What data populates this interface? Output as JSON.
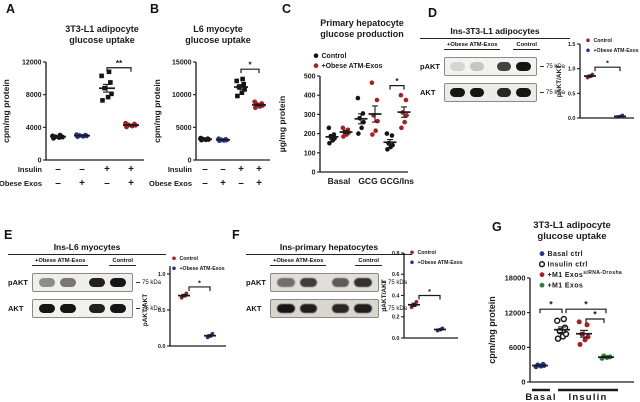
{
  "figure": {
    "panel_labels": {
      "A": "A",
      "B": "B",
      "C": "C",
      "D": "D",
      "E": "E",
      "F": "F",
      "G": "G"
    }
  },
  "colors": {
    "black": "#141414",
    "red": "#a81e22",
    "blue": "#27348b",
    "green": "#2b7d3c",
    "axis": "#1a1a1a"
  },
  "chart_data": [
    {
      "id": "A",
      "type": "scatter",
      "title": "3T3-L1 adipocyte\nglucose uptake",
      "ylabel": "cpm/mg protein",
      "ylim": [
        0,
        12000
      ],
      "yticks": [
        "0",
        "4000",
        "8000",
        "12000"
      ],
      "groups": [
        {
          "name": "Insulin- / ObeseExos-",
          "color": "black",
          "marker": "circle",
          "values": [
            2650,
            2750,
            2800,
            2850,
            2900,
            2950,
            3050
          ],
          "mean": 2860,
          "sem": 50
        },
        {
          "name": "Insulin- / ObeseExos+",
          "color": "blue",
          "marker": "circle",
          "values": [
            2850,
            2900,
            2950,
            3000,
            3050,
            3100
          ],
          "mean": 2980,
          "sem": 45
        },
        {
          "name": "Insulin+ / ObeseExos-",
          "color": "black",
          "marker": "square",
          "values": [
            7300,
            7700,
            8100,
            8800,
            9500,
            10300,
            10800
          ],
          "mean": 8790,
          "sem": 470
        },
        {
          "name": "Insulin+ / ObeseExos+",
          "color": "red",
          "marker": "circle",
          "values": [
            4050,
            4150,
            4250,
            4300,
            4400,
            4500
          ],
          "mean": 4270,
          "sem": 70
        }
      ],
      "xrows": [
        {
          "label": "Insulin",
          "cells": [
            "–",
            "–",
            "+",
            "+"
          ]
        },
        {
          "label": "Obese Exos",
          "cells": [
            "–",
            "+",
            "–",
            "+"
          ]
        }
      ],
      "sig": [
        {
          "from": 2,
          "to": 3,
          "label": "**",
          "y": 11300
        }
      ]
    },
    {
      "id": "B",
      "type": "scatter",
      "title": "L6 myocyte\nglucose uptake",
      "ylabel": "cpm/mg protein",
      "ylim": [
        0,
        15000
      ],
      "yticks": [
        "0",
        "5000",
        "10000",
        "15000"
      ],
      "groups": [
        {
          "name": "Insulin- / ObeseExos-",
          "color": "black",
          "marker": "circle",
          "values": [
            3050,
            3100,
            3150,
            3200,
            3250,
            3350
          ],
          "mean": 3180,
          "sem": 45
        },
        {
          "name": "Insulin- / ObeseExos+",
          "color": "blue",
          "marker": "circle",
          "values": [
            2950,
            3000,
            3050,
            3100,
            3150,
            3250
          ],
          "mean": 3080,
          "sem": 45
        },
        {
          "name": "Insulin+ / ObeseExos-",
          "color": "black",
          "marker": "square",
          "values": [
            9800,
            10300,
            10800,
            11200,
            11600,
            12100,
            12400
          ],
          "mean": 11170,
          "sem": 360
        },
        {
          "name": "Insulin+ / ObeseExos+",
          "color": "red",
          "marker": "circle",
          "values": [
            8000,
            8200,
            8350,
            8500,
            8650,
            8900
          ],
          "mean": 8430,
          "sem": 130
        }
      ],
      "xrows": [
        {
          "label": "Insulin",
          "cells": [
            "–",
            "–",
            "+",
            "+"
          ]
        },
        {
          "label": "Obese Exos",
          "cells": [
            "–",
            "+",
            "–",
            "+"
          ]
        }
      ],
      "sig": [
        {
          "from": 2,
          "to": 3,
          "label": "*",
          "y": 13900
        }
      ]
    },
    {
      "id": "C",
      "type": "scatter",
      "title": "Primary hepatocyte\nglucose production",
      "ylabel": "µg/mg protein",
      "ylim": [
        0,
        500
      ],
      "yticks": [
        "0",
        "100",
        "200",
        "300",
        "400",
        "500"
      ],
      "legend": [
        {
          "color": "black",
          "label": "Control"
        },
        {
          "color": "red",
          "label": "+Obese ATM-Exos"
        }
      ],
      "groups": [
        {
          "name": "Basal Control",
          "color": "black",
          "marker": "circle",
          "values": [
            150,
            165,
            175,
            185,
            195,
            230
          ],
          "mean": 183,
          "sem": 12
        },
        {
          "name": "Basal +Obese ATM-Exos",
          "color": "red",
          "marker": "circle",
          "values": [
            185,
            195,
            205,
            210,
            220,
            230
          ],
          "mean": 208,
          "sem": 7
        },
        {
          "name": "GCG Control",
          "color": "black",
          "marker": "circle",
          "values": [
            200,
            230,
            260,
            280,
            305,
            385
          ],
          "mean": 277,
          "sem": 26
        },
        {
          "name": "GCG +Obese ATM-Exos",
          "color": "red",
          "marker": "circle",
          "values": [
            195,
            215,
            265,
            295,
            375,
            465
          ],
          "mean": 302,
          "sem": 42
        },
        {
          "name": "GCG/Ins Control",
          "color": "black",
          "marker": "circle",
          "values": [
            118,
            130,
            140,
            150,
            190,
            200
          ],
          "mean": 155,
          "sem": 14
        },
        {
          "name": "GCG/Ins +Obese ATM-Exos",
          "color": "red",
          "marker": "circle",
          "values": [
            230,
            260,
            295,
            310,
            375,
            400
          ],
          "mean": 312,
          "sem": 27
        }
      ],
      "xcats": [
        "Basal",
        "GCG",
        "GCG/Ins"
      ],
      "sig": [
        {
          "from": 4,
          "to": 5,
          "label": "*",
          "y": 450
        }
      ]
    },
    {
      "id": "D",
      "type": "blot+scatter",
      "blot": {
        "title": "Ins-3T3-L1 adipocytes",
        "lanes": [
          "+Obese ATM-Exos",
          "Control"
        ],
        "rows": [
          {
            "label": "pAKT",
            "kda": "75 kDa",
            "bands": [
              0.13,
              0.2,
              0.8,
              1.0
            ]
          },
          {
            "label": "AKT",
            "kda": "75 kDa",
            "bands": [
              1.0,
              1.0,
              0.92,
              1.0
            ]
          }
        ]
      },
      "scatter": {
        "ylabel": "pAKT/AKT",
        "ylim": [
          0,
          1.5
        ],
        "yticks": [
          "0.0",
          "0.5",
          "1.0",
          "1.5"
        ],
        "legend": [
          {
            "color": "red",
            "label": "Control"
          },
          {
            "color": "blue",
            "label": "+Obese ATM-Exos"
          }
        ],
        "groups": [
          {
            "name": "Control",
            "color": "red",
            "marker": "circle",
            "values": [
              0.82,
              0.85,
              0.88
            ],
            "mean": 0.85,
            "sem": 0.02
          },
          {
            "name": "+Obese ATM-Exos",
            "color": "blue",
            "marker": "circle",
            "values": [
              0.02,
              0.03,
              0.05
            ],
            "mean": 0.033,
            "sem": 0.01
          }
        ],
        "sig": [
          {
            "from": 0,
            "to": 1,
            "dx1": 5,
            "label": "*",
            "y": 1.03
          }
        ]
      }
    },
    {
      "id": "E",
      "type": "blot+scatter",
      "blot": {
        "title": "Ins-L6 myocytes",
        "lanes": [
          "+Obese ATM-Exos",
          "Control"
        ],
        "rows": [
          {
            "label": "pAKT",
            "kda": "75 kDa",
            "bands": [
              0.45,
              0.55,
              0.95,
              1.0
            ]
          },
          {
            "label": "AKT",
            "kda": "75 kDa",
            "bands": [
              1.0,
              1.0,
              0.95,
              1.0
            ]
          }
        ]
      },
      "scatter": {
        "ylabel": "pAKT/AKT",
        "ylim": [
          0,
          1.0
        ],
        "yticks": [
          "0.0",
          "0.5",
          "1.0"
        ],
        "legend": [
          {
            "color": "red",
            "label": "Control"
          },
          {
            "color": "blue",
            "label": "+Obese ATM-Exos"
          }
        ],
        "groups": [
          {
            "name": "Control",
            "color": "red",
            "marker": "circle",
            "values": [
              0.67,
              0.7,
              0.73
            ],
            "mean": 0.7,
            "sem": 0.017
          },
          {
            "name": "+Obese ATM-Exos",
            "color": "blue",
            "marker": "circle",
            "values": [
              0.12,
              0.14,
              0.17
            ],
            "mean": 0.143,
            "sem": 0.014
          }
        ],
        "sig": [
          {
            "from": 0,
            "to": 1,
            "dx1": 5,
            "label": "*",
            "y": 0.82
          }
        ]
      }
    },
    {
      "id": "F",
      "type": "blot+scatter",
      "blot": {
        "title": "Ins-primary hepatocytes",
        "lanes": [
          "+Obese ATM-Exos",
          "Control"
        ],
        "rows": [
          {
            "label": "pAKT",
            "kda": "75 kDa",
            "bands": [
              0.55,
              0.8,
              0.65,
              0.85
            ]
          },
          {
            "label": "AKT",
            "kda": "75 kDa",
            "bands": [
              1.0,
              0.95,
              0.9,
              0.95
            ]
          }
        ]
      },
      "scatter": {
        "ylabel": "pAKT/AKT",
        "ylim": [
          0,
          0.8
        ],
        "yticks": [
          "0.0",
          "0.2",
          "0.4",
          "0.6",
          "0.8"
        ],
        "legend": [
          {
            "color": "red",
            "label": "Control"
          },
          {
            "color": "blue",
            "label": "+Obese ATM-Exos"
          }
        ],
        "groups": [
          {
            "name": "Control",
            "color": "red",
            "marker": "circle",
            "values": [
              0.29,
              0.31,
              0.34
            ],
            "mean": 0.313,
            "sem": 0.015
          },
          {
            "name": "+Obese ATM-Exos",
            "color": "blue",
            "marker": "circle",
            "values": [
              0.07,
              0.08,
              0.09
            ],
            "mean": 0.08,
            "sem": 0.006
          }
        ],
        "sig": [
          {
            "from": 0,
            "to": 1,
            "dx1": 5,
            "label": "*",
            "y": 0.4
          }
        ]
      }
    },
    {
      "id": "G",
      "type": "scatter",
      "title": "3T3-L1 adipocyte\nglucose uptake",
      "ylabel": "cpm/mg protein",
      "ylim": [
        0,
        18000
      ],
      "yticks": [
        "0",
        "6000",
        "12000",
        "18000"
      ],
      "legend": [
        {
          "color": "blue",
          "label": "Basal ctrl"
        },
        {
          "color": "black",
          "marker": "open-circle",
          "label": "Insulin ctrl"
        },
        {
          "color": "red",
          "label": "+M1 Exos",
          "sup": "siRNA-Drosha"
        },
        {
          "color": "green",
          "label": "+M1 Exos"
        }
      ],
      "groups": [
        {
          "name": "Basal ctrl",
          "color": "blue",
          "marker": "circle",
          "values": [
            2650,
            2750,
            2850,
            2950,
            3050
          ],
          "mean": 2850,
          "sem": 70
        },
        {
          "name": "Insulin ctrl",
          "color": "black",
          "marker": "open-circle",
          "values": [
            7500,
            7900,
            8300,
            8800,
            9400,
            10600,
            10900
          ],
          "mean": 9050,
          "sem": 480
        },
        {
          "name": "+M1 Exos siRNA-Drosha",
          "color": "red",
          "marker": "circle",
          "values": [
            6500,
            7300,
            7800,
            8300,
            9900,
            10400
          ],
          "mean": 8350,
          "sem": 590
        },
        {
          "name": "+M1 Exos",
          "color": "green",
          "marker": "circle",
          "values": [
            4100,
            4250,
            4350,
            4500
          ],
          "mean": 4300,
          "sem": 85
        }
      ],
      "xgroups": [
        "Basal",
        "Insulin"
      ],
      "sig": [
        {
          "from": 0,
          "to": 1,
          "label": "*",
          "y": 12600
        },
        {
          "from": 1,
          "to": 3,
          "dx1": 4,
          "label": "*",
          "y": 12600
        },
        {
          "from": 2,
          "to": 3,
          "dx1": 2,
          "dx2": -2,
          "label": "*",
          "y": 10900
        }
      ]
    }
  ]
}
